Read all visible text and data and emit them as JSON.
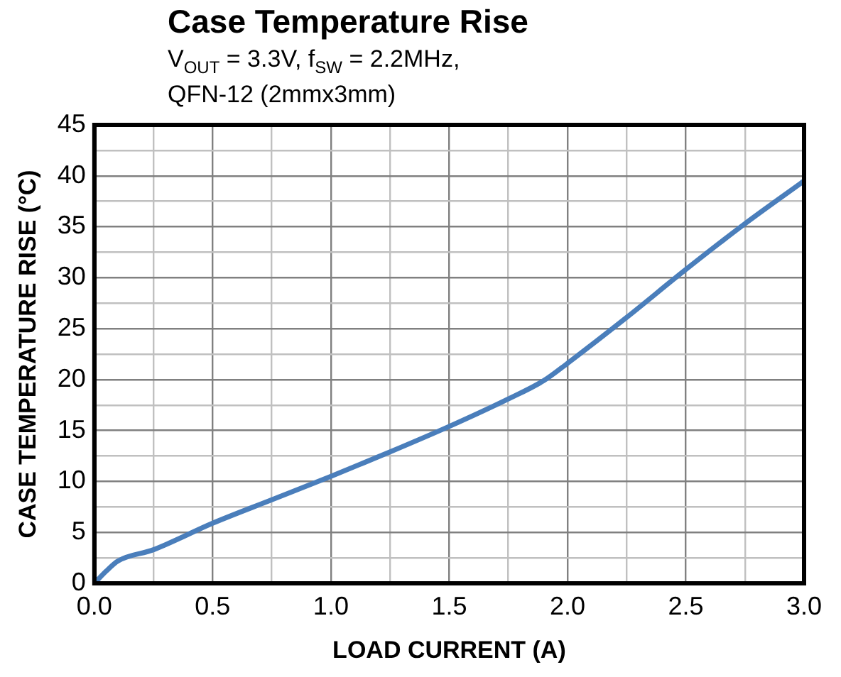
{
  "chart_data": {
    "type": "line",
    "title": "Case Temperature Rise",
    "subtitle": "V$_{OUT}$ = 3.3V, f$_{SW}$ = 2.2MHz,\nQFN-12 (2mmx3mm)",
    "xlabel": "LOAD CURRENT (A)",
    "ylabel": "CASE TEMPERATURE RISE (°C)",
    "x": [
      0,
      0.05,
      0.1,
      0.25,
      0.5,
      0.75,
      1.0,
      1.25,
      1.5,
      1.75,
      1.9,
      2.0,
      2.25,
      2.5,
      2.75,
      3.0
    ],
    "series": [
      {
        "color": "#4a7ebb",
        "values": [
          0,
          1.2,
          2.2,
          3.3,
          5.9,
          8.2,
          10.5,
          12.9,
          15.4,
          18.1,
          19.9,
          21.6,
          26.1,
          30.8,
          35.3,
          39.5
        ]
      }
    ],
    "xlim": [
      0,
      3
    ],
    "xticks": [
      {
        "value": 0,
        "label": "0.0"
      },
      {
        "value": 0.25,
        "label": null
      },
      {
        "value": 0.5,
        "label": "0.5"
      },
      {
        "value": 0.75,
        "label": null
      },
      {
        "value": 1,
        "label": "1.0"
      },
      {
        "value": 1.25,
        "label": null
      },
      {
        "value": 1.5,
        "label": "1.5"
      },
      {
        "value": 1.75,
        "label": null
      },
      {
        "value": 2,
        "label": "2.0"
      },
      {
        "value": 2.25,
        "label": null
      },
      {
        "value": 2.5,
        "label": "2.5"
      },
      {
        "value": 2.75,
        "label": null
      },
      {
        "value": 3,
        "label": "3.0"
      }
    ],
    "ylim": [
      0,
      45
    ],
    "yticks": [
      0,
      {
        "value": 2.5,
        "label": null
      },
      5,
      {
        "value": 7.5,
        "label": null
      },
      10,
      {
        "value": 12.5,
        "label": null
      },
      15,
      {
        "value": 17.5,
        "label": null
      },
      20,
      {
        "value": 22.5,
        "label": null
      },
      25,
      {
        "value": 27.5,
        "label": null
      },
      30,
      {
        "value": 32.5,
        "label": null
      },
      35,
      {
        "value": 37.5,
        "label": null
      },
      40,
      {
        "value": 42.5,
        "label": null
      },
      45
    ],
    "grid": true,
    "legend": false,
    "marker": "none",
    "line_style": "solid"
  }
}
